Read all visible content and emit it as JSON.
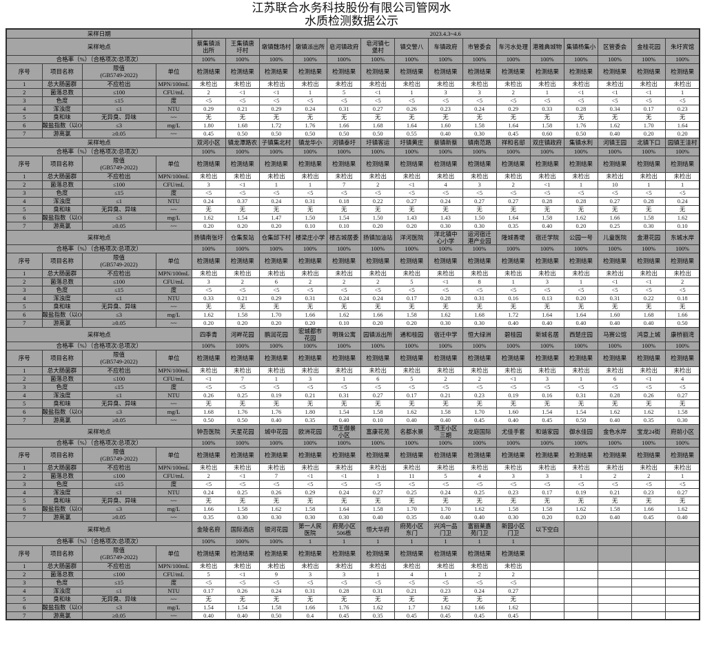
{
  "title_line1": "江苏联合水务科技股份有限公司管网水",
  "title_line2": "水质检测数据公示",
  "labels": {
    "sample_date": "采样日期",
    "date_value": "2023.4.3~4.6",
    "sample_location": "采样地点",
    "pass_rate": "合格率（%）（合格项次/总项次）",
    "seq": "序号",
    "item_name": "项目名称",
    "limit": "限值\n(GB5749-2022)",
    "unit": "单位",
    "result": "检测结果",
    "below_blank": "以下空白"
  },
  "items": [
    {
      "no": "1",
      "name": "总大肠菌群",
      "limit": "不应检出",
      "unit": "MPN/100mL"
    },
    {
      "no": "2",
      "name": "菌落总数",
      "limit": "≤100",
      "unit": "CFU/mL"
    },
    {
      "no": "3",
      "name": "色度",
      "limit": "≤15",
      "unit": "度"
    },
    {
      "no": "4",
      "name": "浑浊度",
      "limit": "≤1",
      "unit": "NTU"
    },
    {
      "no": "5",
      "name": "臭和味",
      "limit": "无异臭、异味",
      "unit": "~~"
    },
    {
      "no": "6",
      "name": "酸盐指数（以O₂",
      "limit": "≤3",
      "unit": "mg/L"
    },
    {
      "no": "7",
      "name": "游离氯",
      "limit": "≥0.05",
      "unit": "~~"
    }
  ],
  "sections": [
    {
      "result_cols": 15,
      "locations": [
        "蔡集镇派\n出所",
        "王集镇唐\n圩村",
        "墩镇魏场村",
        "墩镇派出所",
        "皂河镇政府",
        "皂河镇七\n堡村",
        "镇交警八",
        "车镇政府",
        "市管委会",
        "车污水处理",
        "港雅典城物",
        "集镇杨集小",
        "区管委会",
        "金桂花园",
        "朱圩宾馆"
      ],
      "pass_rates": [
        "100%",
        "100%",
        "100%",
        "100%",
        "100%",
        "100%",
        "100%",
        "100%",
        "100%",
        "100%",
        "100%",
        "100%",
        "100%",
        "100%",
        "100%"
      ],
      "rows": [
        [
          "未检出",
          "未检出",
          "未检出",
          "未检出",
          "未检出",
          "未检出",
          "未检出",
          "未检出",
          "未检出",
          "未检出",
          "未检出",
          "未检出",
          "未检出",
          "未检出",
          "未检出"
        ],
        [
          "2",
          "<1",
          "<1",
          "1",
          "5",
          "<1",
          "1",
          "3",
          "3",
          "2",
          "1",
          "<1",
          "<1",
          "<1",
          "1"
        ],
        [
          "<5",
          "<5",
          "<5",
          "<5",
          "<5",
          "<5",
          "<5",
          "<5",
          "<5",
          "<5",
          "<5",
          "<5",
          "<5",
          "<5",
          "<5"
        ],
        [
          "0.29",
          "0.21",
          "0.29",
          "0.24",
          "0.31",
          "0.27",
          "0.26",
          "0.23",
          "0.24",
          "0.29",
          "0.33",
          "0.28",
          "0.34",
          "0.17",
          "0.23"
        ],
        [
          "无",
          "无",
          "无",
          "无",
          "无",
          "无",
          "无",
          "无",
          "无",
          "无",
          "无",
          "无",
          "无",
          "无",
          "无"
        ],
        [
          "1.80",
          "1.68",
          "1.72",
          "1.76",
          "1.66",
          "1.68",
          "1.64",
          "1.60",
          "1.58",
          "1.64",
          "1.58",
          "1.76",
          "1.62",
          "1.70",
          "1.64"
        ],
        [
          "0.45",
          "0.50",
          "0.50",
          "0.50",
          "0.50",
          "0.50",
          "0.55",
          "0.40",
          "0.30",
          "0.45",
          "0.60",
          "0.50",
          "0.40",
          "0.20",
          "0.20"
        ]
      ]
    },
    {
      "result_cols": 15,
      "locations": [
        "双河小区",
        "镇龙潭路农",
        "子镇集北村",
        "镇龙华小",
        "河镇泰圩",
        "圩镇客运",
        "圩镇黄庄",
        "蔡镇新蔡",
        "镇南范路",
        "祥和名邸",
        "双庄镇政府",
        "集镇水利",
        "河镇王园",
        "北镇下口",
        "园镇王洼村"
      ],
      "pass_rates": [
        "100%",
        "100%",
        "100%",
        "100%",
        "100%",
        "100%",
        "100%",
        "100%",
        "100%",
        "100%",
        "100%",
        "100%",
        "100%",
        "100%",
        "100%"
      ],
      "rows": [
        [
          "未检出",
          "未检出",
          "未检出",
          "未检出",
          "未检出",
          "未检出",
          "未检出",
          "未检出",
          "未检出",
          "未检出",
          "未检出",
          "未检出",
          "未检出",
          "未检出",
          "未检出"
        ],
        [
          "3",
          "<1",
          "1",
          "1",
          "7",
          "2",
          "<1",
          "4",
          "3",
          "2",
          "<1",
          "1",
          "10",
          "1",
          "1"
        ],
        [
          "<5",
          "<5",
          "<5",
          "<5",
          "<5",
          "<5",
          "<5",
          "<5",
          "<5",
          "<5",
          "<5",
          "<5",
          "<5",
          "<5",
          "<5"
        ],
        [
          "0.24",
          "0.37",
          "0.24",
          "0.31",
          "0.18",
          "0.22",
          "0.27",
          "0.24",
          "0.27",
          "0.27",
          "0.28",
          "0.28",
          "0.27",
          "0.28",
          "0.24"
        ],
        [
          "无",
          "无",
          "无",
          "无",
          "无",
          "无",
          "无",
          "无",
          "无",
          "无",
          "无",
          "无",
          "无",
          "无",
          "无"
        ],
        [
          "1.62",
          "1.54",
          "1.47",
          "1.50",
          "1.54",
          "1.50",
          "1.43",
          "1.43",
          "1.50",
          "1.64",
          "1.58",
          "1.62",
          "1.66",
          "1.58",
          "1.62"
        ],
        [
          "0.20",
          "0.20",
          "0.20",
          "0.10",
          "0.10",
          "0.20",
          "0.20",
          "0.30",
          "0.30",
          "0.35",
          "0.40",
          "0.20",
          "0.25",
          "0.30",
          "0.10"
        ]
      ]
    },
    {
      "result_cols": 15,
      "locations": [
        "扬镇南张圩",
        "仓集泵站",
        "仓集邱下村",
        "楼梁庄小学",
        "楼古城居委",
        "扬镇加油站",
        "洋河医院",
        "洋北镇中\n心小学",
        "运河宿迁\n港产业园",
        "隆城香堤",
        "宿迁学院",
        "公园一号",
        "儿童医院",
        "金港花园",
        "东城水岸"
      ],
      "pass_rates": [
        "100%",
        "100%",
        "100%",
        "100%",
        "100%",
        "100%",
        "100%",
        "100%",
        "100%",
        "100%",
        "100%",
        "100%",
        "100%",
        "100%",
        "100%"
      ],
      "rows": [
        [
          "未检出",
          "未检出",
          "未检出",
          "未检出",
          "未检出",
          "未检出",
          "未检出",
          "未检出",
          "未检出",
          "未检出",
          "未检出",
          "未检出",
          "未检出",
          "未检出",
          "未检出"
        ],
        [
          "3",
          "2",
          "6",
          "2",
          "2",
          "2",
          "5",
          "<1",
          "8",
          "1",
          "3",
          "1",
          "<1",
          "<1",
          "2"
        ],
        [
          "<5",
          "<5",
          "<5",
          "<5",
          "<5",
          "<5",
          "<5",
          "<5",
          "<5",
          "<5",
          "<5",
          "<5",
          "<5",
          "<5",
          "<5"
        ],
        [
          "0.33",
          "0.21",
          "0.29",
          "0.31",
          "0.24",
          "0.24",
          "0.17",
          "0.28",
          "0.31",
          "0.16",
          "0.13",
          "0.20",
          "0.31",
          "0.22",
          "0.18"
        ],
        [
          "无",
          "无",
          "无",
          "无",
          "无",
          "无",
          "无",
          "无",
          "无",
          "无",
          "无",
          "无",
          "无",
          "无",
          "无"
        ],
        [
          "1.62",
          "1.58",
          "1.70",
          "1.66",
          "1.62",
          "1.66",
          "1.58",
          "1.62",
          "1.68",
          "1.72",
          "1.64",
          "1.64",
          "1.60",
          "1.68",
          "1.66"
        ],
        [
          "0.20",
          "0.20",
          "0.20",
          "0.20",
          "0.10",
          "0.20",
          "0.20",
          "0.30",
          "0.30",
          "0.40",
          "0.40",
          "0.40",
          "0.40",
          "0.40",
          "0.50"
        ]
      ]
    },
    {
      "result_cols": 15,
      "locations": [
        "四季青",
        "河畔花园",
        "鹏润花园",
        "宏城都市\n花园",
        "明珠公寓",
        "园镇派出所",
        "通和桂园",
        "宿迁中学",
        "恒大绿洲",
        "碧桂园",
        "新城名居",
        "西楚庄园",
        "马赛公馆",
        "鸿意上城",
        "康桥丽湾"
      ],
      "pass_rates": [
        "100%",
        "100%",
        "100%",
        "100%",
        "100%",
        "100%",
        "100%",
        "100%",
        "100%",
        "100%",
        "100%",
        "100%",
        "100%",
        "100%",
        "100%"
      ],
      "rows": [
        [
          "未检出",
          "未检出",
          "未检出",
          "未检出",
          "未检出",
          "未检出",
          "未检出",
          "未检出",
          "未检出",
          "未检出",
          "未检出",
          "未检出",
          "未检出",
          "未检出",
          "未检出"
        ],
        [
          "<1",
          "7",
          "1",
          "3",
          "1",
          "6",
          "5",
          "2",
          "2",
          "<1",
          "3",
          "1",
          "6",
          "<1",
          "4"
        ],
        [
          "<5",
          "<5",
          "<5",
          "<5",
          "<5",
          "<5",
          "<5",
          "<5",
          "<5",
          "<5",
          "<5",
          "<5",
          "<5",
          "<5",
          "<5"
        ],
        [
          "0.26",
          "0.25",
          "0.19",
          "0.21",
          "0.31",
          "0.27",
          "0.17",
          "0.21",
          "0.23",
          "0.19",
          "0.16",
          "0.31",
          "0.28",
          "0.26",
          "0.27"
        ],
        [
          "无",
          "无",
          "无",
          "无",
          "无",
          "无",
          "无",
          "无",
          "无",
          "无",
          "无",
          "无",
          "无",
          "无",
          "无"
        ],
        [
          "1.68",
          "1.76",
          "1.76",
          "1.80",
          "1.54",
          "1.58",
          "1.62",
          "1.58",
          "1.70",
          "1.60",
          "1.54",
          "1.54",
          "1.62",
          "1.62",
          "1.58"
        ],
        [
          "0.50",
          "0.50",
          "0.40",
          "0.35",
          "0.40",
          "0.10",
          "0.40",
          "0.40",
          "0.45",
          "0.40",
          "0.45",
          "0.50",
          "0.40",
          "0.35",
          "0.30"
        ]
      ]
    },
    {
      "result_cols": 15,
      "locations": [
        "钟吾医院",
        "天星花园",
        "城中花园",
        "欧洲花园",
        "项王御景\n小区",
        "富康花苑",
        "名都水景",
        "项王小区\n三期",
        "龙庭国际",
        "尤佳手套",
        "和谐家园",
        "御水佳园",
        "金色水岸",
        "宝龙24街",
        "府前小区"
      ],
      "pass_rates": [
        "100%",
        "100%",
        "100%",
        "100%",
        "100%",
        "100%",
        "100%",
        "100%",
        "100%",
        "100%",
        "100%",
        "100%",
        "100%",
        "100%",
        "100%"
      ],
      "rows": [
        [
          "未检出",
          "未检出",
          "未检出",
          "未检出",
          "未检出",
          "未检出",
          "未检出",
          "未检出",
          "未检出",
          "未检出",
          "未检出",
          "未检出",
          "未检出",
          "未检出",
          "未检出"
        ],
        [
          "2",
          "<1",
          "7",
          "<1",
          "<1",
          "1",
          "11",
          "5",
          "4",
          "3",
          "3",
          "1",
          "2",
          "2",
          "1"
        ],
        [
          "<5",
          "<5",
          "<5",
          "<5",
          "<5",
          "<5",
          "<5",
          "<5",
          "<5",
          "<5",
          "<5",
          "<5",
          "<5",
          "<5",
          "<5"
        ],
        [
          "0.24",
          "0.25",
          "0.26",
          "0.29",
          "0.24",
          "0.27",
          "0.25",
          "0.24",
          "0.25",
          "0.23",
          "0.17",
          "0.19",
          "0.21",
          "0.23",
          "0.27"
        ],
        [
          "无",
          "无",
          "无",
          "无",
          "无",
          "无",
          "无",
          "无",
          "无",
          "无",
          "无",
          "无",
          "无",
          "无",
          "无"
        ],
        [
          "1.66",
          "1.58",
          "1.62",
          "1.58",
          "1.64",
          "1.58",
          "1.70",
          "1.70",
          "1.62",
          "1.58",
          "1.58",
          "1.62",
          "1.58",
          "1.66",
          "1.62"
        ],
        [
          "0.35",
          "0.30",
          "0.30",
          "0.30",
          "0.30",
          "0.40",
          "0.35",
          "0.40",
          "0.40",
          "0.30",
          "0.20",
          "0.20",
          "0.40",
          "0.45",
          "0.40"
        ]
      ]
    },
    {
      "result_cols": 10,
      "locations": [
        "金陵名府",
        "国际酒店",
        "银河花园",
        "第一人民\n医院",
        "府苑小区\n506栋",
        "恒大华府",
        "府苑小区\n东门",
        "兴鸿一品\n门卫",
        "富丽莱嘉\n苑门卫",
        "新园小区\n门卫",
        "以下空白",
        "",
        "",
        "",
        ""
      ],
      "pass_rates": [
        "100%",
        "100%",
        "100%",
        "1",
        "1",
        "1",
        "1",
        "1",
        "1",
        "1",
        "",
        "",
        "",
        "",
        ""
      ],
      "rows": [
        [
          "未检出",
          "未检出",
          "未检出",
          "未检出",
          "未检出",
          "未检出",
          "未检出",
          "未检出",
          "未检出",
          "未检出",
          "",
          "",
          "",
          "",
          ""
        ],
        [
          "5",
          "<1",
          "9",
          "3",
          "3",
          "1",
          "4",
          "1",
          "2",
          "2",
          "",
          "",
          "",
          "",
          ""
        ],
        [
          "<5",
          "<5",
          "<5",
          "<5",
          "<5",
          "<5",
          "<5",
          "<5",
          "<5",
          "<5",
          "",
          "",
          "",
          "",
          ""
        ],
        [
          "0.17",
          "0.26",
          "0.24",
          "0.31",
          "0.28",
          "0.31",
          "0.21",
          "0.23",
          "0.24",
          "0.27",
          "",
          "",
          "",
          "",
          ""
        ],
        [
          "无",
          "无",
          "无",
          "无",
          "无",
          "无",
          "无",
          "无",
          "无",
          "无",
          "",
          "",
          "",
          "",
          ""
        ],
        [
          "1.54",
          "1.54",
          "1.58",
          "1.66",
          "1.76",
          "1.62",
          "1.7",
          "1.62",
          "1.66",
          "1.62",
          "",
          "",
          "",
          "",
          ""
        ],
        [
          "0.40",
          "0.40",
          "0.50",
          "0.4",
          "0.45",
          "0.35",
          "0.45",
          "0.45",
          "0.45",
          "0.45",
          "",
          "",
          "",
          "",
          ""
        ]
      ]
    }
  ]
}
